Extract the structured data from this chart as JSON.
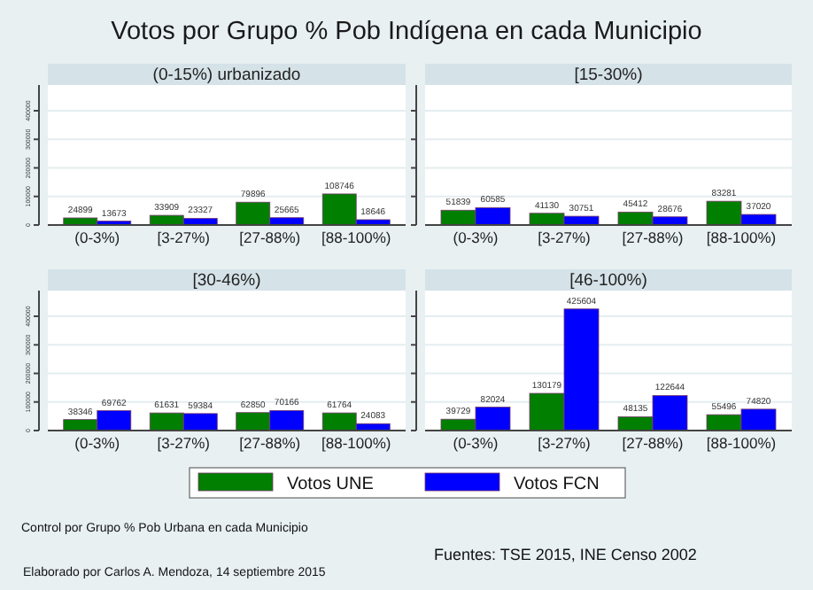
{
  "chart_data": [
    {
      "type": "bar",
      "title": "(0-15%) urbanizado",
      "categories": [
        "(0-3%)",
        "[3-27%)",
        "[27-88%)",
        "[88-100%)"
      ],
      "series": [
        {
          "color": "#007f00",
          "values": [
            24899,
            33909,
            79896,
            108746
          ]
        },
        {
          "color": "#0000ff",
          "values": [
            13673,
            23327,
            25665,
            18646
          ]
        }
      ],
      "ylim": [
        0,
        490000
      ],
      "yticks": [
        0,
        100000,
        200000,
        300000,
        400000
      ],
      "grid": "y",
      "data_labels": true
    },
    {
      "type": "bar",
      "title": "[15-30%)",
      "categories": [
        "(0-3%)",
        "[3-27%)",
        "[27-88%)",
        "[88-100%)"
      ],
      "series": [
        {
          "color": "#007f00",
          "values": [
            51839,
            41130,
            45412,
            83281
          ]
        },
        {
          "color": "#0000ff",
          "values": [
            60585,
            30751,
            28676,
            37020
          ]
        }
      ],
      "ylim": [
        0,
        490000
      ],
      "yticks": [
        0,
        100000,
        200000,
        300000,
        400000
      ],
      "grid": "y",
      "data_labels": true,
      "tick_labels": "x"
    },
    {
      "type": "bar",
      "title": "[30-46%)",
      "categories": [
        "(0-3%)",
        "[3-27%)",
        "[27-88%)",
        "[88-100%)"
      ],
      "series": [
        {
          "color": "#007f00",
          "values": [
            38346,
            61631,
            62850,
            61764
          ]
        },
        {
          "color": "#0000ff",
          "values": [
            69762,
            59384,
            70166,
            24083
          ]
        }
      ],
      "ylim": [
        0,
        490000
      ],
      "yticks": [
        0,
        100000,
        200000,
        300000,
        400000
      ],
      "grid": "y",
      "data_labels": true
    },
    {
      "type": "bar",
      "title": "[46-100%)",
      "categories": [
        "(0-3%)",
        "[3-27%)",
        "[27-88%)",
        "[88-100%)"
      ],
      "series": [
        {
          "name": "Votos UNE",
          "color": "#007f00",
          "values": [
            39729,
            130179,
            48135,
            55496
          ]
        },
        {
          "name": "Votos FCN",
          "color": "#0000ff",
          "values": [
            82024,
            425604,
            122644,
            74820
          ]
        }
      ],
      "ylim": [
        0,
        490000
      ],
      "yticks": [
        0,
        100000,
        200000,
        300000,
        400000
      ],
      "grid": "y",
      "data_labels": true,
      "tick_labels": "x",
      "legend": "bottom"
    },
    {
      "type": "other",
      "title": "Votos por Grupo % Pob Indígena en cada Municipio",
      "annotations": [
        "Control por Grupo % Pob Urbana en cada Municipio",
        "Fuentes: TSE 2015, INE Censo 2002",
        "Elaborado por Carlos A. Mendoza, 14 septiembre 2015"
      ]
    }
  ]
}
